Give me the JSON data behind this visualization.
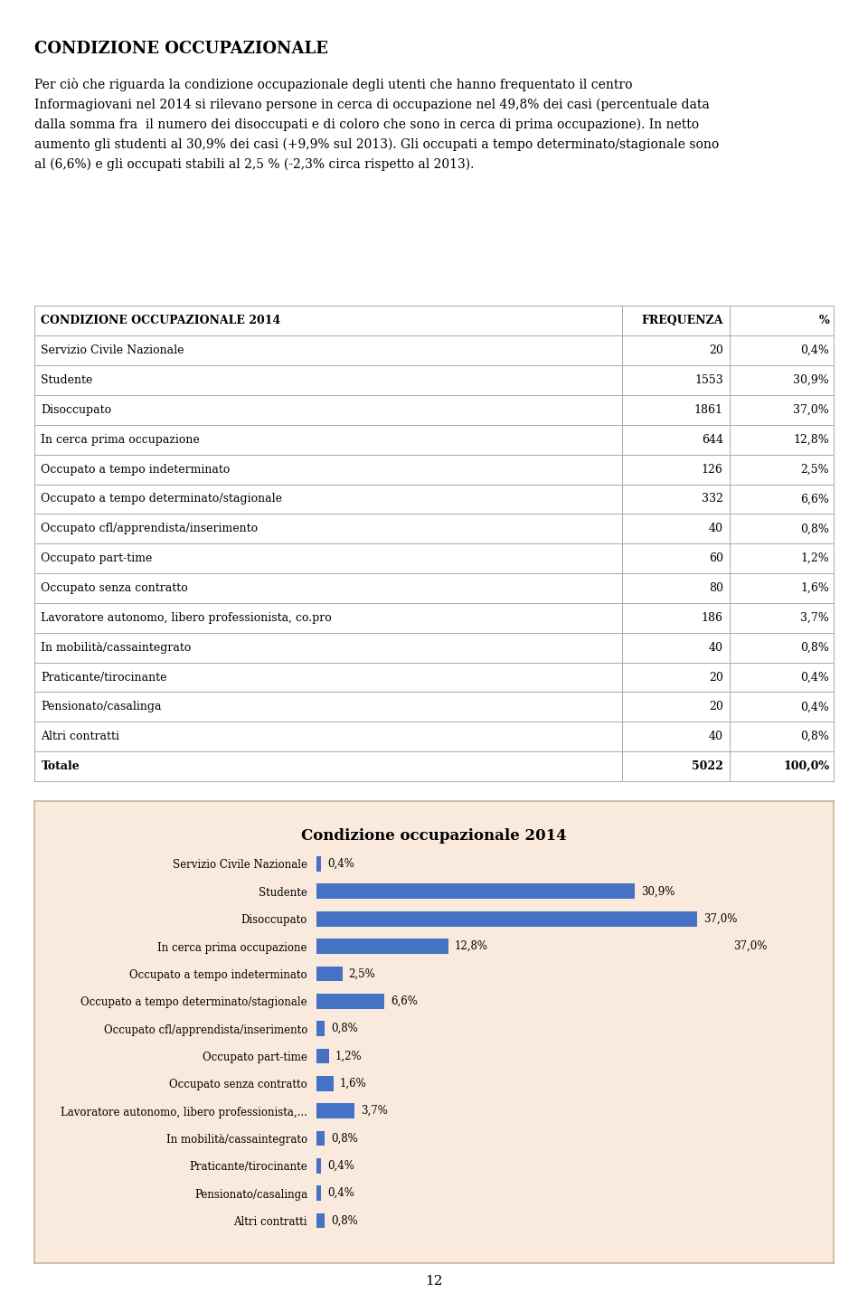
{
  "title_main": "CONDIZIONE OCCUPAZIONALE",
  "paragraph": "Per ciò che riguarda la condizione occupazionale degli utenti che hanno frequentato il centro Informagiovani nel 2014 si rilevano persone in cerca di occupazione nel 49,8% dei casi (percentuale data dalla somma fra  il numero dei disoccupati e di coloro che sono in cerca di prima occupazione). In netto aumento gli studenti al 30,9% dei casi (+9,9% sul 2013). Gli occupati a tempo determinato/stagionale sono al (6,6%) e gli occupati stabili al 2,5 % (-2,3% circa rispetto al 2013).",
  "table_header": [
    "CONDIZIONE OCCUPAZIONALE 2014",
    "FREQUENZA",
    "%"
  ],
  "table_rows": [
    [
      "Servizio Civile Nazionale",
      "20",
      "0,4%"
    ],
    [
      "Studente",
      "1553",
      "30,9%"
    ],
    [
      "Disoccupato",
      "1861",
      "37,0%"
    ],
    [
      "In cerca prima occupazione",
      "644",
      "12,8%"
    ],
    [
      "Occupato a tempo indeterminato",
      "126",
      "2,5%"
    ],
    [
      "Occupato a tempo determinato/stagionale",
      "332",
      "6,6%"
    ],
    [
      "Occupato cfl/apprendista/inserimento",
      "40",
      "0,8%"
    ],
    [
      "Occupato part-time",
      "60",
      "1,2%"
    ],
    [
      "Occupato senza contratto",
      "80",
      "1,6%"
    ],
    [
      "Lavoratore autonomo, libero professionista, co.pro",
      "186",
      "3,7%"
    ],
    [
      "In mobilità/cassaintegrato",
      "40",
      "0,8%"
    ],
    [
      "Praticante/tirocinante",
      "20",
      "0,4%"
    ],
    [
      "Pensionato/casalinga",
      "20",
      "0,4%"
    ],
    [
      "Altri contratti",
      "40",
      "0,8%"
    ],
    [
      "Totale",
      "5022",
      "100,0%"
    ]
  ],
  "chart_title": "Condizione occupazionale 2014",
  "chart_bg": "#faeade",
  "chart_border": "#c8b49a",
  "bar_color": "#4472c4",
  "categories": [
    "Altri contratti",
    "Pensionato/casalinga",
    "Praticante/tirocinante",
    "In mobilità/cassaintegrato",
    "Lavoratore autonomo, libero professionista,...",
    "Occupato senza contratto",
    "Occupato part-time",
    "Occupato cfl/apprendista/inserimento",
    "Occupato a tempo determinato/stagionale",
    "Occupato a tempo indeterminato",
    "In cerca prima occupazione",
    "Disoccupato",
    "Studente",
    "Servizio Civile Nazionale"
  ],
  "values": [
    0.8,
    0.4,
    0.4,
    0.8,
    3.7,
    1.6,
    1.2,
    0.8,
    6.6,
    2.5,
    12.8,
    37.0,
    30.9,
    0.4
  ],
  "value_labels": [
    "0,8%",
    "0,4%",
    "0,4%",
    "0,8%",
    "3,7%",
    "1,6%",
    "1,2%",
    "0,8%",
    "6,6%",
    "2,5%",
    "12,8%",
    "37,0%",
    "30,9%",
    "0,4%"
  ],
  "disoccupato_extra_label": "37,0%",
  "disoccupato_idx": 11,
  "in_cerca_idx": 10,
  "page_number": "12",
  "background_color": "#ffffff",
  "text_color": "#000000",
  "grid_color": "#aaaaaa"
}
